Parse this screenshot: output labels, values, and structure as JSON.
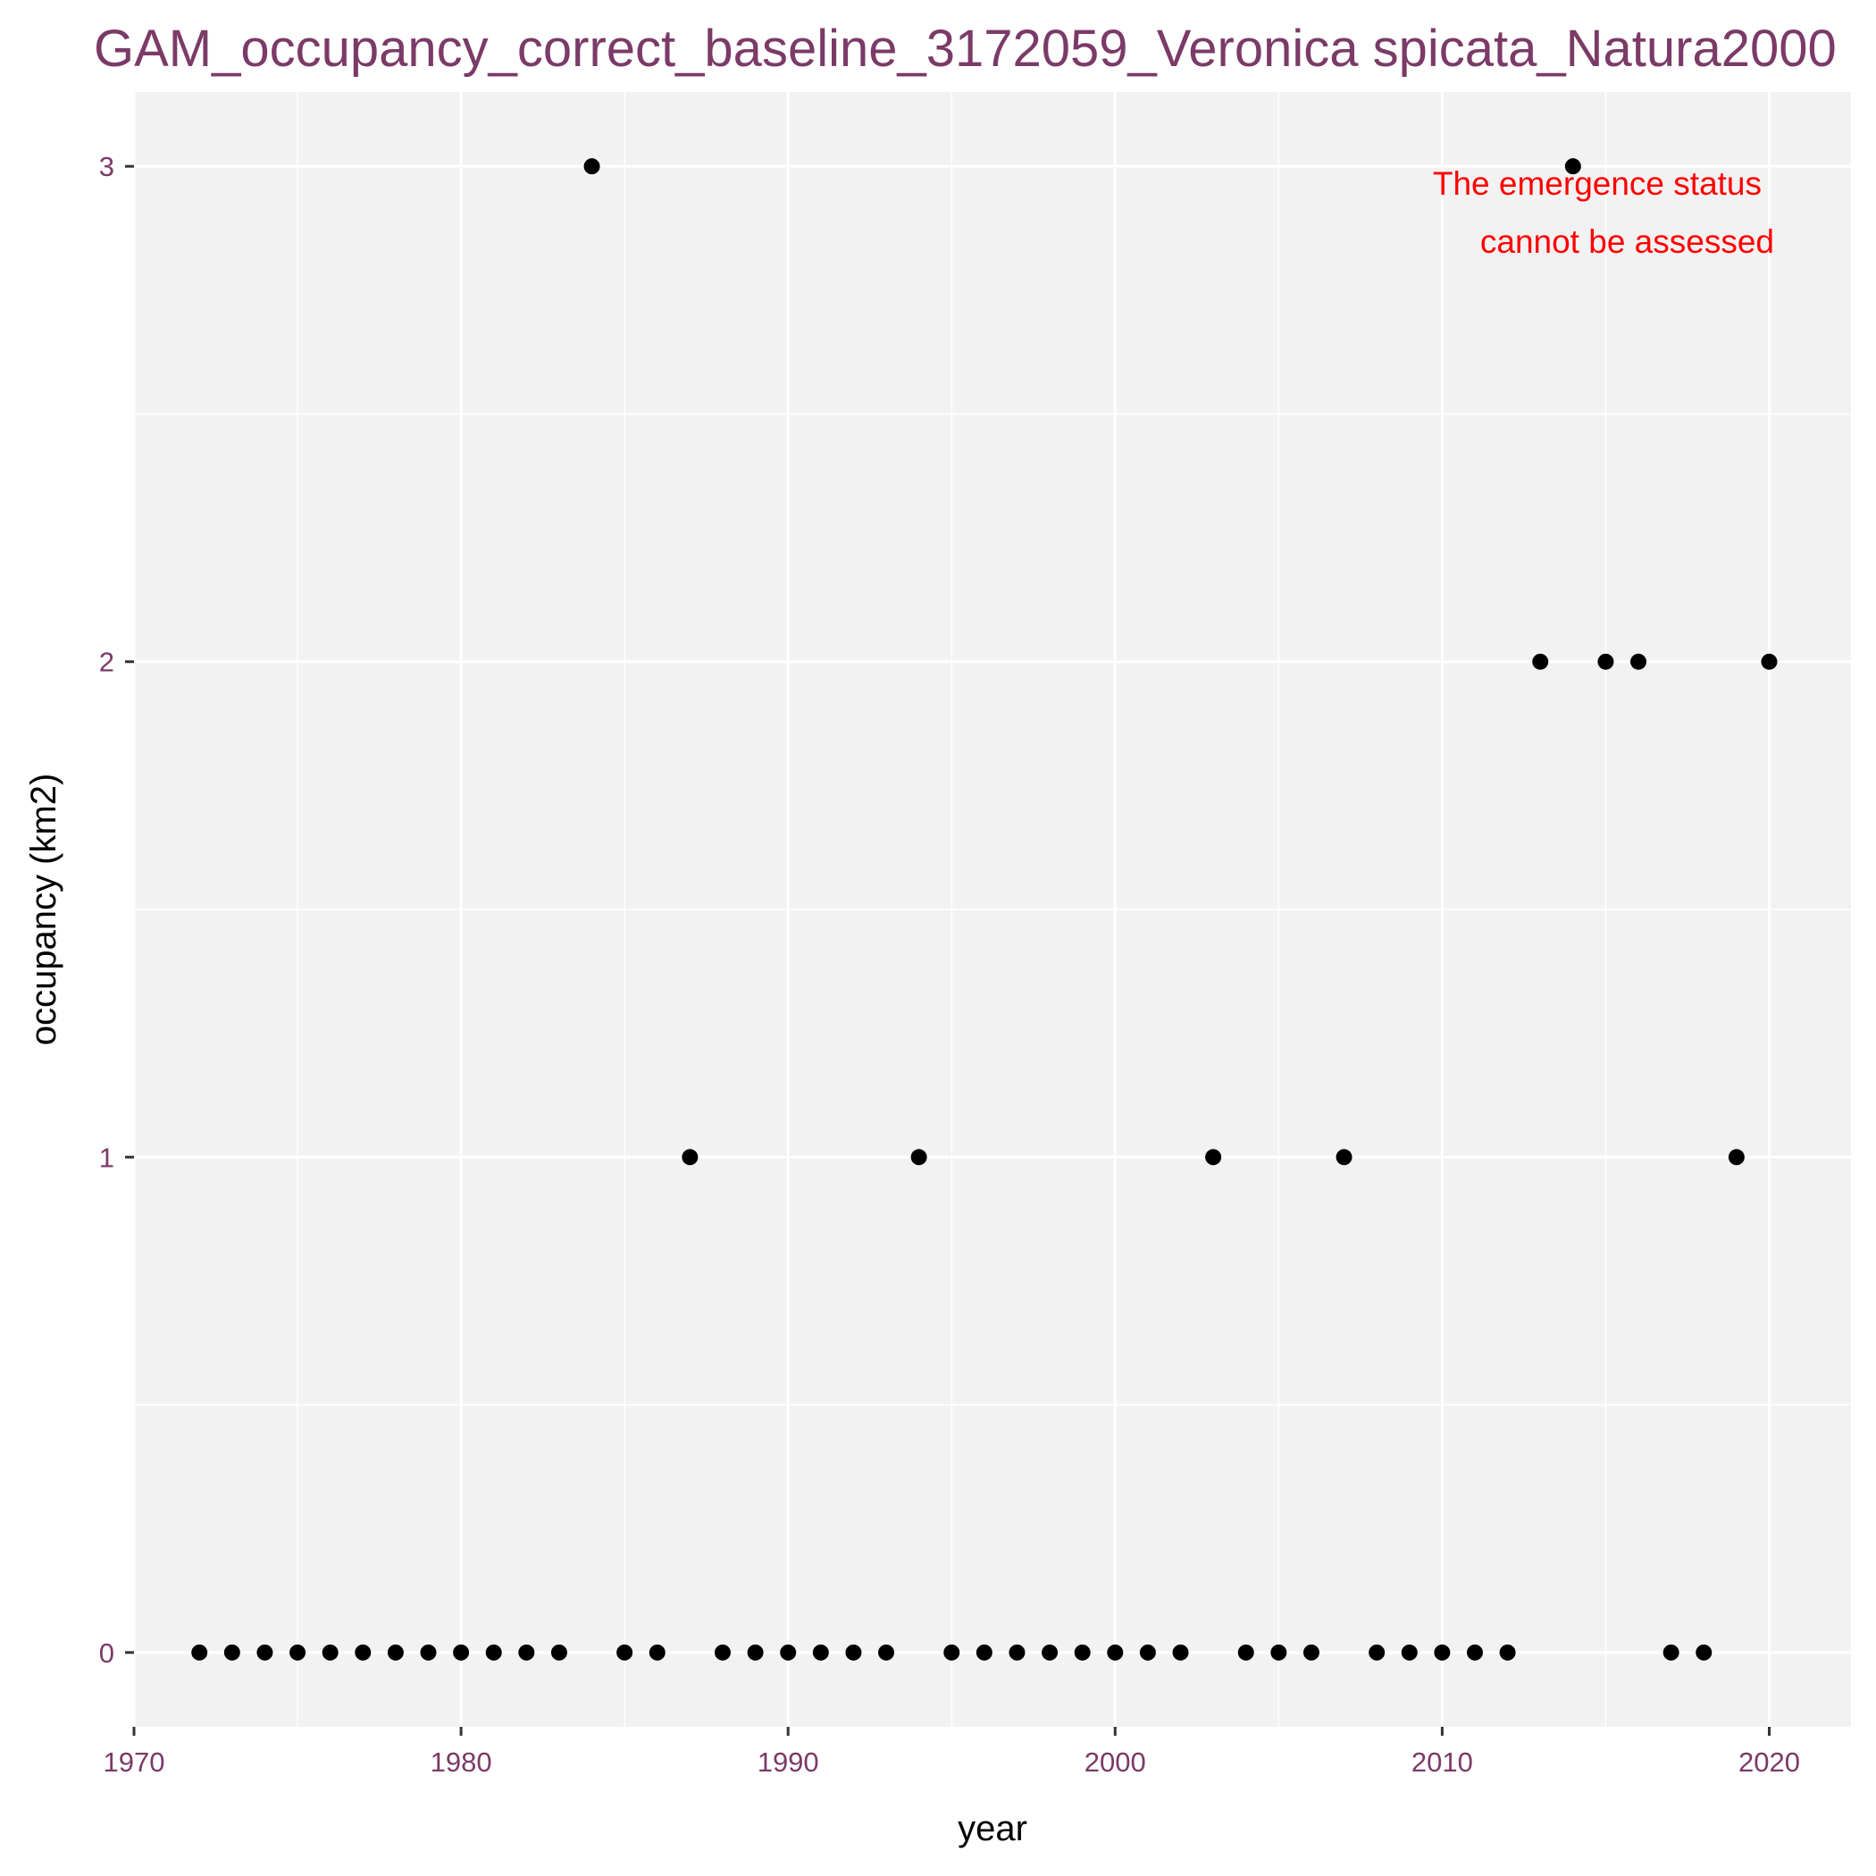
{
  "chart_data": {
    "type": "scatter",
    "title": "GAM_occupancy_correct_baseline_3172059_Veronica spicata_Natura2000",
    "xlabel": "year",
    "ylabel": "occupancy (km2)",
    "xlim": [
      1970,
      2022.5
    ],
    "ylim": [
      -0.15,
      3.15
    ],
    "xticks": [
      1970,
      1980,
      1990,
      2000,
      2010,
      2020
    ],
    "yticks": [
      0,
      1,
      2,
      3
    ],
    "grid": true,
    "annotation": [
      "The emergence status",
      "cannot be assessed"
    ],
    "colors": {
      "panel": "#f2f2f2",
      "grid": "#ffffff",
      "tick_label": "#7b3a67",
      "title": "#7b3a67",
      "point": "#000000",
      "annotation": "#ff0000"
    },
    "points": [
      {
        "x": 1972,
        "y": 0
      },
      {
        "x": 1973,
        "y": 0
      },
      {
        "x": 1974,
        "y": 0
      },
      {
        "x": 1975,
        "y": 0
      },
      {
        "x": 1976,
        "y": 0
      },
      {
        "x": 1977,
        "y": 0
      },
      {
        "x": 1978,
        "y": 0
      },
      {
        "x": 1979,
        "y": 0
      },
      {
        "x": 1980,
        "y": 0
      },
      {
        "x": 1981,
        "y": 0
      },
      {
        "x": 1982,
        "y": 0
      },
      {
        "x": 1983,
        "y": 0
      },
      {
        "x": 1984,
        "y": 3
      },
      {
        "x": 1985,
        "y": 0
      },
      {
        "x": 1986,
        "y": 0
      },
      {
        "x": 1987,
        "y": 1
      },
      {
        "x": 1988,
        "y": 0
      },
      {
        "x": 1989,
        "y": 0
      },
      {
        "x": 1990,
        "y": 0
      },
      {
        "x": 1991,
        "y": 0
      },
      {
        "x": 1992,
        "y": 0
      },
      {
        "x": 1993,
        "y": 0
      },
      {
        "x": 1994,
        "y": 1
      },
      {
        "x": 1995,
        "y": 0
      },
      {
        "x": 1996,
        "y": 0
      },
      {
        "x": 1997,
        "y": 0
      },
      {
        "x": 1998,
        "y": 0
      },
      {
        "x": 1999,
        "y": 0
      },
      {
        "x": 2000,
        "y": 0
      },
      {
        "x": 2001,
        "y": 0
      },
      {
        "x": 2002,
        "y": 0
      },
      {
        "x": 2003,
        "y": 1
      },
      {
        "x": 2004,
        "y": 0
      },
      {
        "x": 2005,
        "y": 0
      },
      {
        "x": 2006,
        "y": 0
      },
      {
        "x": 2007,
        "y": 1
      },
      {
        "x": 2008,
        "y": 0
      },
      {
        "x": 2009,
        "y": 0
      },
      {
        "x": 2010,
        "y": 0
      },
      {
        "x": 2011,
        "y": 0
      },
      {
        "x": 2012,
        "y": 0
      },
      {
        "x": 2013,
        "y": 2
      },
      {
        "x": 2014,
        "y": 3
      },
      {
        "x": 2015,
        "y": 2
      },
      {
        "x": 2016,
        "y": 2
      },
      {
        "x": 2017,
        "y": 0
      },
      {
        "x": 2018,
        "y": 0
      },
      {
        "x": 2019,
        "y": 1
      },
      {
        "x": 2020,
        "y": 2
      }
    ]
  }
}
